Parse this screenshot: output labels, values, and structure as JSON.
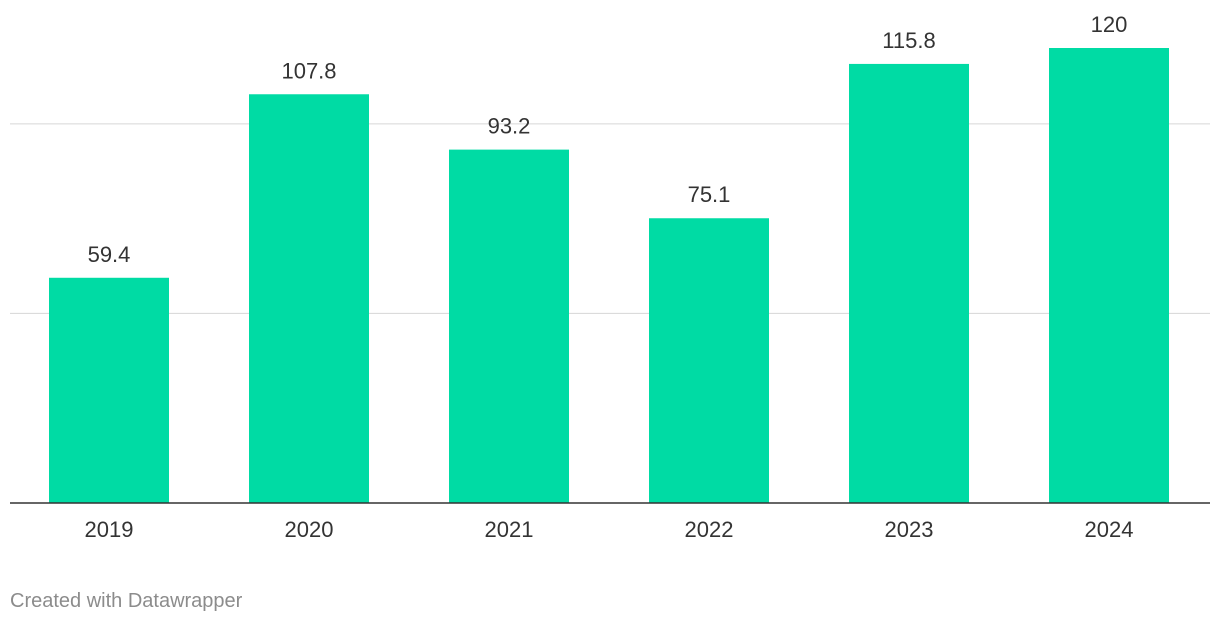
{
  "chart_data": {
    "type": "bar",
    "title": "",
    "xlabel": "",
    "ylabel": "",
    "categories": [
      "2019",
      "2020",
      "2021",
      "2022",
      "2023",
      "2024"
    ],
    "values": [
      59.4,
      107.8,
      93.2,
      75.1,
      115.8,
      120
    ],
    "value_labels": [
      "59.4",
      "107.8",
      "93.2",
      "75.1",
      "115.8",
      "120"
    ],
    "ylim": [
      0,
      120
    ],
    "gridlines_at": [
      50,
      100
    ],
    "grid": true,
    "legend": "none",
    "colors": {
      "bar": "#00dba4",
      "gridline": "#d6d6d6",
      "baseline": "#333333",
      "text": "#333333",
      "footer": "#8c8c8c"
    }
  },
  "footer": {
    "credit": "Created with Datawrapper"
  }
}
